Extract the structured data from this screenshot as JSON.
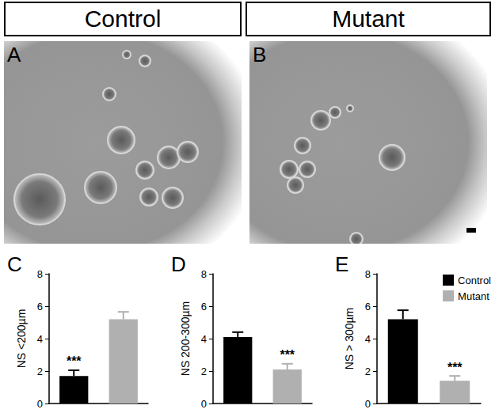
{
  "figure": {
    "headers": [
      "Control",
      "Mutant"
    ],
    "image_panels": [
      "A",
      "B"
    ]
  },
  "chart_data": [
    {
      "panel": "C",
      "type": "bar",
      "ylabel": "NS <200µm",
      "categories": [
        null
      ],
      "series": [
        {
          "name": "Control",
          "color": "#000000",
          "values": [
            1.7
          ],
          "errors": [
            0.35
          ],
          "annotation": "***"
        },
        {
          "name": "Mutant",
          "color": "#b0b0b0",
          "values": [
            5.2
          ],
          "errors": [
            0.45
          ]
        }
      ],
      "ylim": [
        0,
        8
      ],
      "yticks": [
        0,
        2,
        4,
        6,
        8
      ],
      "tick_labels": "y"
    },
    {
      "panel": "D",
      "type": "bar",
      "ylabel": "NS 200-300µm",
      "categories": [
        null
      ],
      "series": [
        {
          "name": "Control",
          "color": "#000000",
          "values": [
            4.1
          ],
          "errors": [
            0.3
          ]
        },
        {
          "name": "Mutant",
          "color": "#b0b0b0",
          "values": [
            2.1
          ],
          "errors": [
            0.35
          ],
          "annotation": "***"
        }
      ],
      "ylim": [
        0,
        8
      ],
      "yticks": [
        0,
        2,
        4,
        6,
        8
      ],
      "tick_labels": "y"
    },
    {
      "panel": "E",
      "type": "bar",
      "ylabel": "NS > 300µm",
      "categories": [
        null
      ],
      "series": [
        {
          "name": "Control",
          "color": "#000000",
          "values": [
            5.2
          ],
          "errors": [
            0.55
          ]
        },
        {
          "name": "Mutant",
          "color": "#b0b0b0",
          "values": [
            1.4
          ],
          "errors": [
            0.3
          ],
          "annotation": "***"
        }
      ],
      "ylim": [
        0,
        8
      ],
      "yticks": [
        0,
        2,
        4,
        6,
        8
      ],
      "tick_labels": "y",
      "legend": "upper right"
    }
  ]
}
